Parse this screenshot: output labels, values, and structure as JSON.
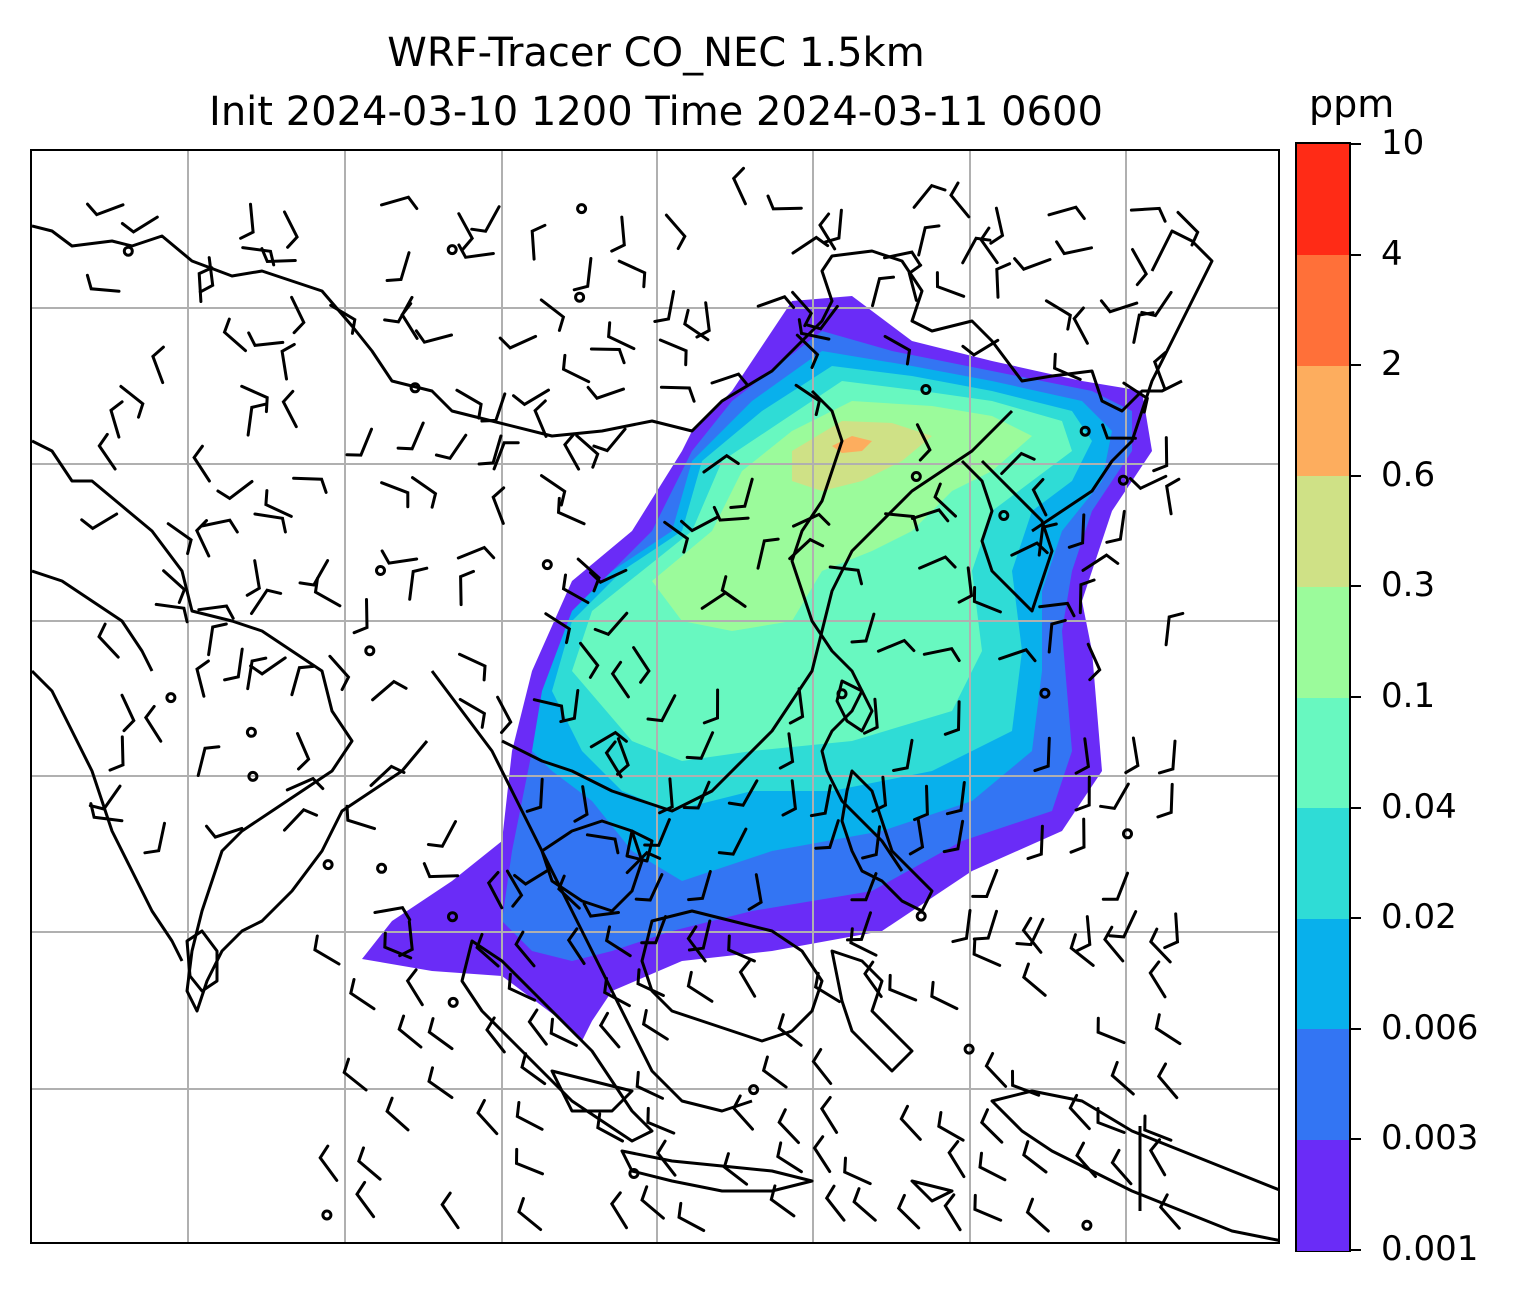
{
  "figure": {
    "title_line1": "WRF-Tracer CO_NEC 1.5km",
    "title_line2": "Init 2024-03-10 1200 Time 2024-03-11 0600"
  },
  "colorbar": {
    "unit": "ppm",
    "levels": [
      "0.001",
      "0.003",
      "0.006",
      "0.02",
      "0.04",
      "0.1",
      "0.3",
      "0.6",
      "2",
      "4",
      "10"
    ],
    "colors": [
      "#6a2cf7",
      "#3375f3",
      "#08b0ec",
      "#2fdcd6",
      "#68f8c0",
      "#9bfb9b",
      "#cfe186",
      "#fdad5e",
      "#ff7039",
      "#ff2b16"
    ]
  },
  "map": {
    "gridlines": true,
    "gridline_color": "#b0b0b0",
    "coastline_color": "#000000",
    "overlay": "wind barbs",
    "field": "CO_NEC tracer concentration"
  }
}
